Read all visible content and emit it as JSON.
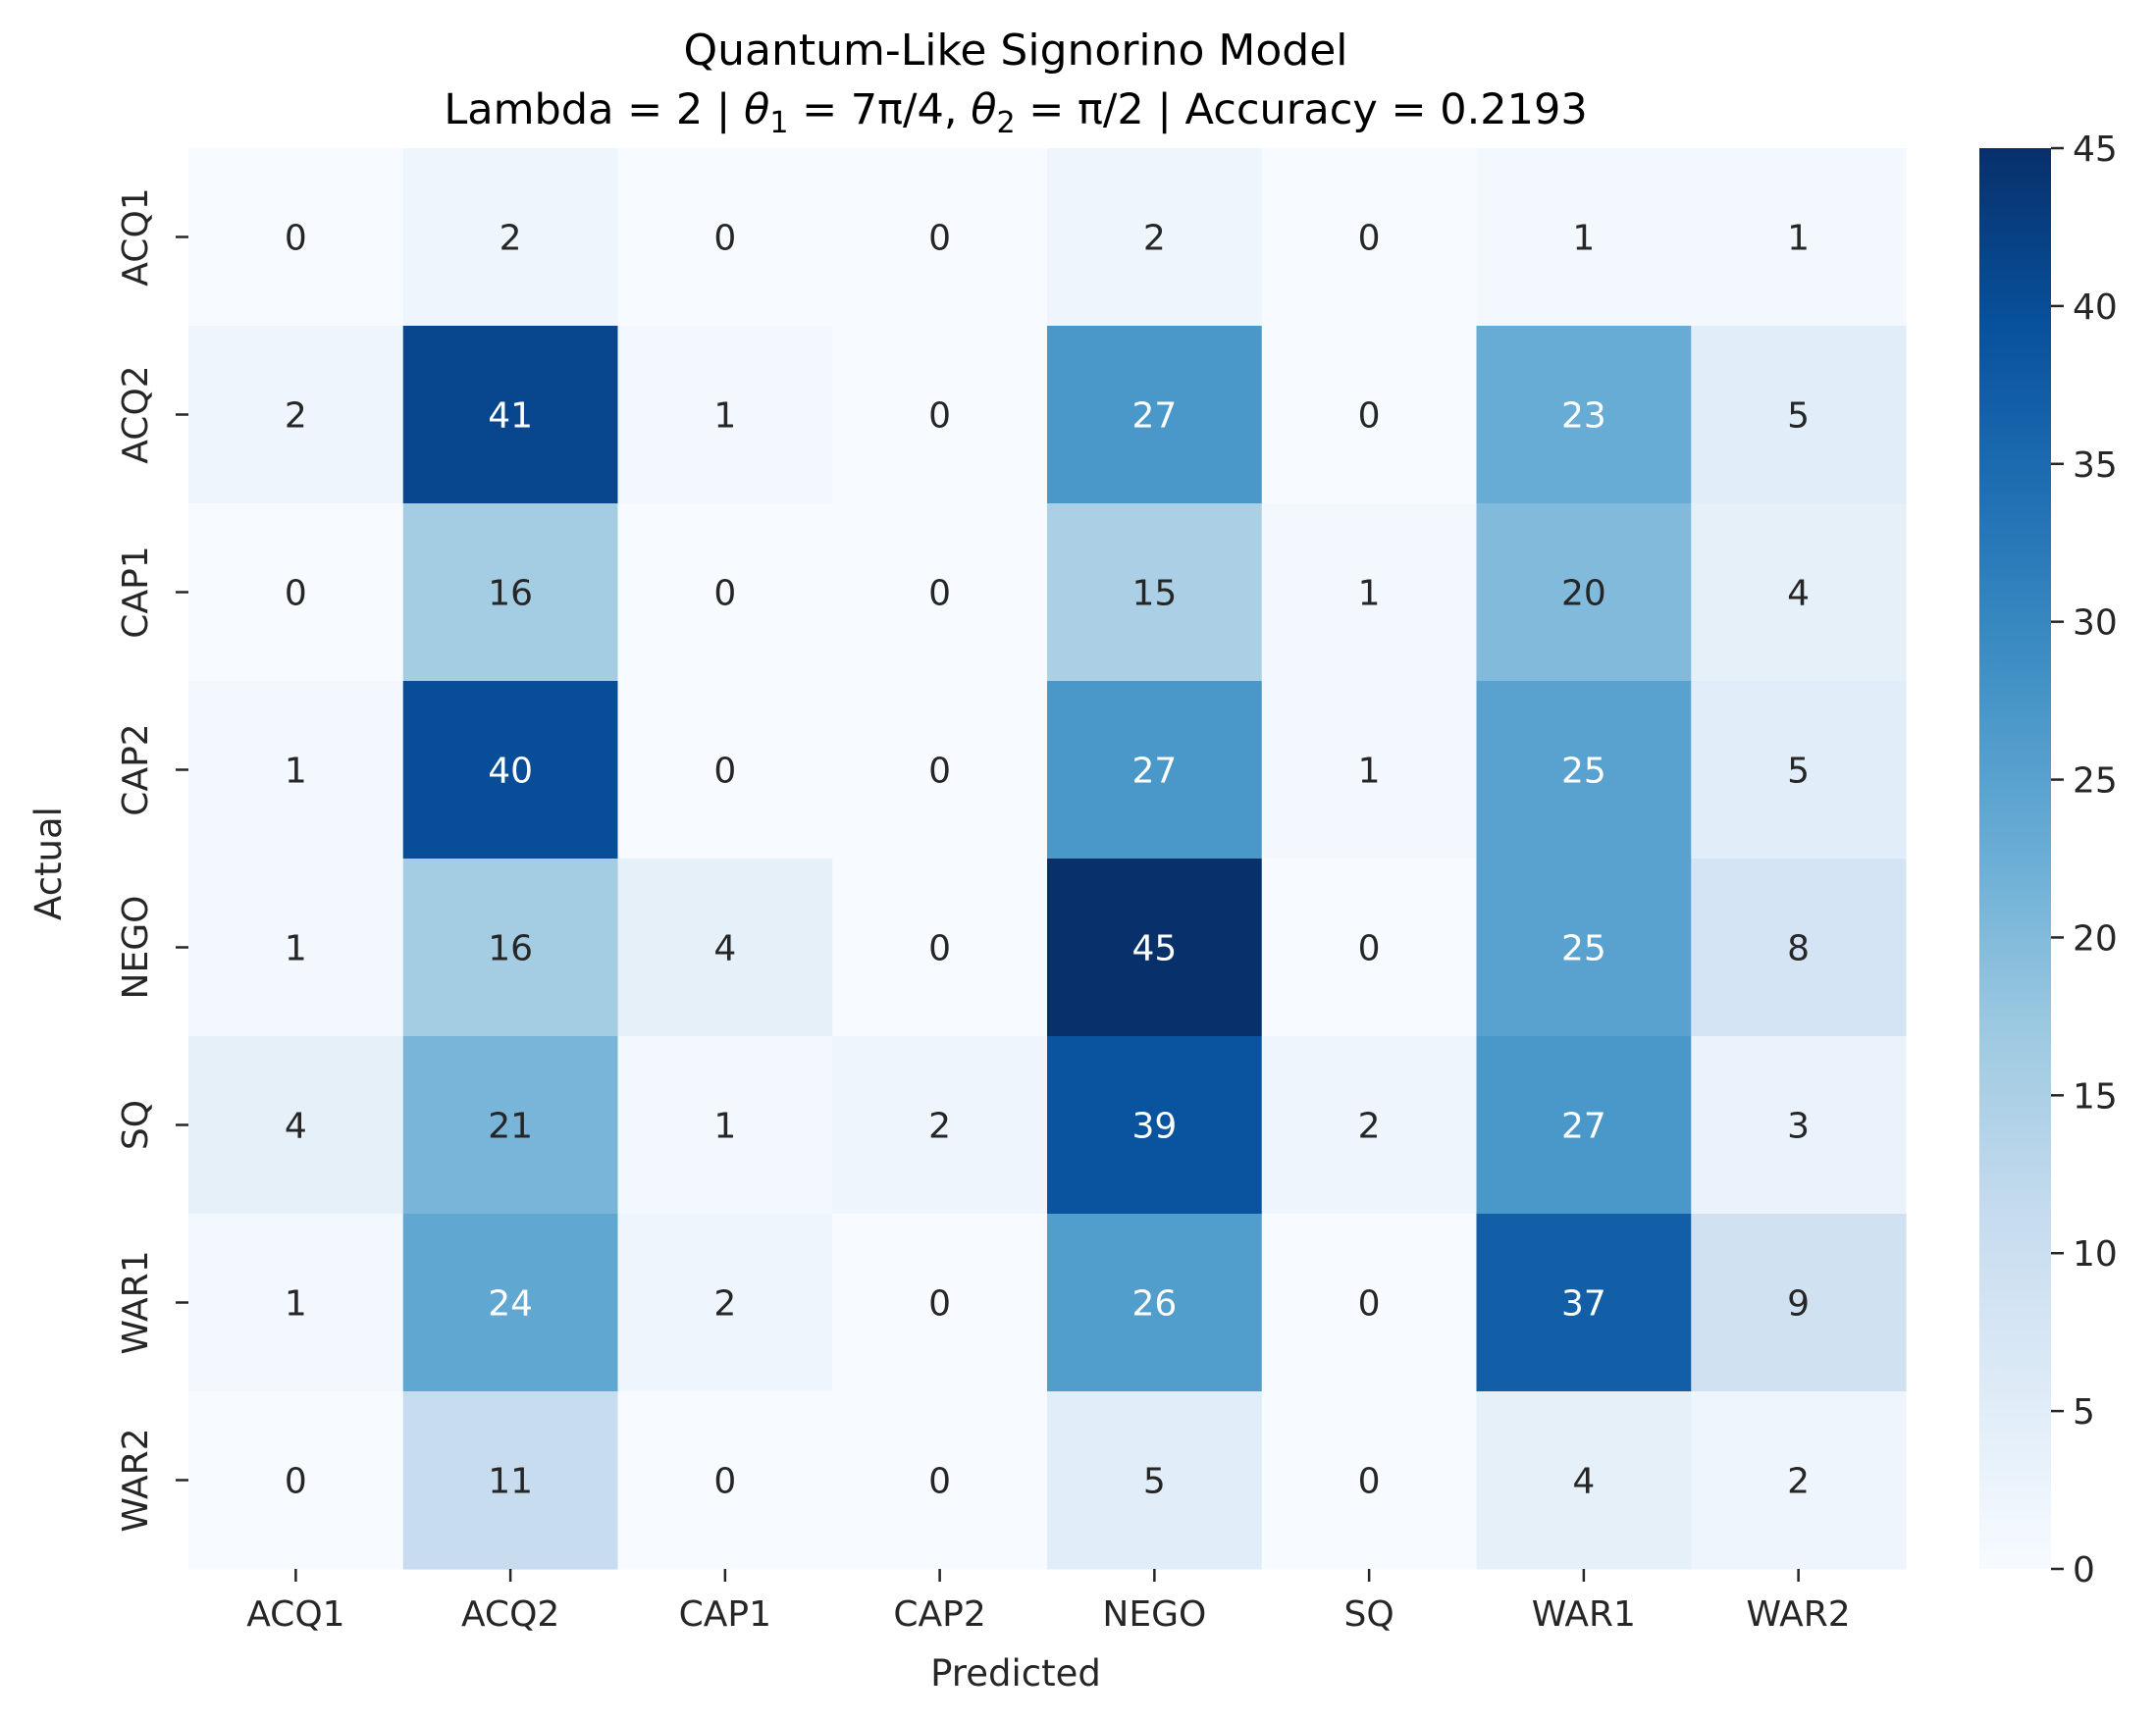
{
  "chart_data": {
    "type": "heatmap",
    "title": "Quantum-Like Signorino Model",
    "subtitle": {
      "prefix": "Lambda = 2 | ",
      "theta1_symbol": "θ",
      "theta1_sub": "1",
      "theta1_value": " = 7π/4, ",
      "theta2_symbol": "θ",
      "theta2_sub": "2",
      "theta2_value": " = π/2  | Accuracy = 0.2193"
    },
    "xlabel": "Predicted",
    "ylabel": "Actual",
    "x_categories": [
      "ACQ1",
      "ACQ2",
      "CAP1",
      "CAP2",
      "NEGO",
      "SQ",
      "WAR1",
      "WAR2"
    ],
    "y_categories": [
      "ACQ1",
      "ACQ2",
      "CAP1",
      "CAP2",
      "NEGO",
      "SQ",
      "WAR1",
      "WAR2"
    ],
    "values": [
      [
        0,
        2,
        0,
        0,
        2,
        0,
        1,
        1
      ],
      [
        2,
        41,
        1,
        0,
        27,
        0,
        23,
        5
      ],
      [
        0,
        16,
        0,
        0,
        15,
        1,
        20,
        4
      ],
      [
        1,
        40,
        0,
        0,
        27,
        1,
        25,
        5
      ],
      [
        1,
        16,
        4,
        0,
        45,
        0,
        25,
        8
      ],
      [
        4,
        21,
        1,
        2,
        39,
        2,
        27,
        3
      ],
      [
        1,
        24,
        2,
        0,
        26,
        0,
        37,
        9
      ],
      [
        0,
        11,
        0,
        0,
        5,
        0,
        4,
        2
      ]
    ],
    "colormap": "Blues",
    "colormap_stops": [
      "#f7fbff",
      "#deebf7",
      "#c6dbef",
      "#9ecae1",
      "#6baed6",
      "#4292c6",
      "#2171b5",
      "#08519c",
      "#08306b"
    ],
    "vmin": 0,
    "vmax": 45,
    "colorbar_ticks": [
      0,
      5,
      10,
      15,
      20,
      25,
      30,
      35,
      40,
      45
    ],
    "text_color_dark": "#262626",
    "text_color_light": "#ffffff"
  }
}
